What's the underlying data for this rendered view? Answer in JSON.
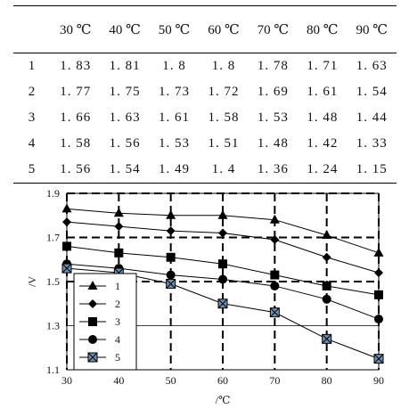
{
  "table": {
    "header": [
      "",
      "30 ℃",
      "40 ℃",
      "50 ℃",
      "60 ℃",
      "70 ℃",
      "80 ℃",
      "90 ℃"
    ],
    "rows": [
      [
        "1",
        "1. 83",
        "1. 81",
        "1. 8",
        "1. 8",
        "1. 78",
        "1. 71",
        "1. 63"
      ],
      [
        "2",
        "1. 77",
        "1. 75",
        "1. 73",
        "1. 72",
        "1. 69",
        "1. 61",
        "1. 54"
      ],
      [
        "3",
        "1. 66",
        "1. 63",
        "1. 61",
        "1. 58",
        "1. 53",
        "1. 48",
        "1. 44"
      ],
      [
        "4",
        "1. 58",
        "1. 56",
        "1. 53",
        "1. 51",
        "1. 48",
        "1. 42",
        "1. 33"
      ],
      [
        "5",
        "1. 56",
        "1. 54",
        "1. 49",
        "1. 4",
        "1. 36",
        "1. 24",
        "1. 15"
      ]
    ]
  },
  "chart_data": {
    "type": "line",
    "x": [
      30,
      40,
      50,
      60,
      70,
      80,
      90
    ],
    "xticks": [
      "30",
      "40",
      "50",
      "60",
      "70",
      "80",
      "90"
    ],
    "yticks": [
      "1.1",
      "1.3",
      "1.5",
      "1.7",
      "1.9"
    ],
    "xlim": [
      30,
      90
    ],
    "ylim": [
      1.1,
      1.9
    ],
    "xlabel": "/℃",
    "ylabel": "/V",
    "grid": "dashed at 1.5, 1.7, 1.9 and every x tick",
    "legend_placement": "lower-left",
    "series": [
      {
        "name": "1",
        "marker": "triangle",
        "values": [
          1.83,
          1.81,
          1.8,
          1.8,
          1.78,
          1.71,
          1.63
        ]
      },
      {
        "name": "2",
        "marker": "diamond",
        "values": [
          1.77,
          1.75,
          1.73,
          1.72,
          1.69,
          1.61,
          1.54
        ]
      },
      {
        "name": "3",
        "marker": "square",
        "values": [
          1.66,
          1.63,
          1.61,
          1.58,
          1.53,
          1.48,
          1.44
        ]
      },
      {
        "name": "4",
        "marker": "circle",
        "values": [
          1.58,
          1.56,
          1.53,
          1.51,
          1.48,
          1.42,
          1.33
        ]
      },
      {
        "name": "5",
        "marker": "x-square",
        "values": [
          1.56,
          1.54,
          1.49,
          1.4,
          1.36,
          1.24,
          1.15
        ]
      }
    ]
  }
}
